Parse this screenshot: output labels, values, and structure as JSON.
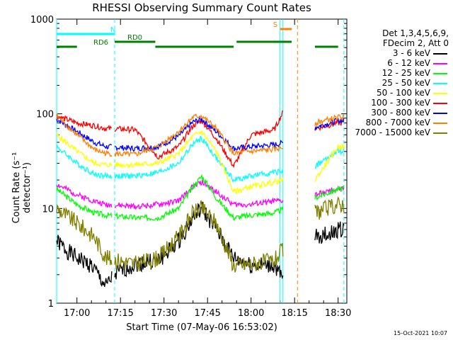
{
  "chart_data": {
    "type": "line",
    "title": "RHESSI Observing Summary Count Rates",
    "xlabel": "Start Time (07-May-06 16:53:02)",
    "ylabel": "Count Rate (s⁻¹ detector⁻¹)",
    "ylim": [
      1,
      1000
    ],
    "yscale": "log",
    "xlim": [
      "16:53",
      "18:33"
    ],
    "x_ticks": [
      "17:00",
      "17:15",
      "17:30",
      "17:45",
      "18:00",
      "18:15",
      "18:30"
    ],
    "y_ticks": [
      "1",
      "10",
      "100",
      "1000"
    ],
    "grid": false,
    "legend_header": [
      "Det 1,3,4,5,6,9,",
      "FDecim 2, Att 0"
    ],
    "legend_position": "right",
    "series": [
      {
        "name": "3 - 6 keV",
        "color": "#000000",
        "x": [
          "16:53",
          "16:57",
          "17:00",
          "17:05",
          "17:10",
          "17:13",
          "17:20",
          "17:28",
          "17:35",
          "17:40",
          "17:43",
          "17:48",
          "17:54",
          "18:00",
          "18:08",
          "18:12",
          "18:22",
          "18:28",
          "18:30"
        ],
        "y": [
          4.5,
          3.5,
          3.0,
          2.5,
          1.5,
          2.0,
          2.6,
          2.8,
          4.5,
          8,
          10,
          6,
          3,
          2.5,
          2.5,
          1.5,
          5,
          5.5,
          6
        ]
      },
      {
        "name": "6 - 12 keV",
        "color": "#ff00ff",
        "x": [
          "16:53",
          "17:00",
          "17:06",
          "17:10",
          "17:20",
          "17:28",
          "17:35",
          "17:40",
          "17:43",
          "17:48",
          "17:54",
          "18:00",
          "18:08",
          "18:12",
          "18:22",
          "18:30"
        ],
        "y": [
          18,
          14,
          12,
          11,
          10.5,
          11,
          12,
          17,
          19,
          15,
          11,
          11,
          12,
          12,
          14,
          16
        ]
      },
      {
        "name": "12 - 25 keV",
        "color": "#00ff00",
        "x": [
          "16:53",
          "17:00",
          "17:06",
          "17:10",
          "17:20",
          "17:28",
          "17:35",
          "17:40",
          "17:43",
          "17:48",
          "17:54",
          "18:00",
          "18:08",
          "18:12",
          "18:22",
          "18:30"
        ],
        "y": [
          16,
          11,
          9,
          8.5,
          8,
          8,
          10,
          17,
          22,
          13,
          8,
          8.5,
          9,
          10,
          13,
          16
        ]
      },
      {
        "name": "25 - 50 keV",
        "color": "#00ffff",
        "x": [
          "16:53",
          "17:00",
          "17:06",
          "17:10",
          "17:20",
          "17:28",
          "17:35",
          "17:40",
          "17:43",
          "17:48",
          "17:54",
          "18:00",
          "18:08",
          "18:12",
          "18:22",
          "18:30"
        ],
        "y": [
          45,
          30,
          23,
          22,
          22,
          24,
          30,
          48,
          55,
          34,
          20,
          22,
          24,
          25,
          28,
          40
        ]
      },
      {
        "name": "50 - 100 keV",
        "color": "#ffff00",
        "x": [
          "16:53",
          "17:00",
          "17:06",
          "17:10",
          "17:20",
          "17:28",
          "17:35",
          "17:40",
          "17:43",
          "17:48",
          "17:54",
          "18:00",
          "18:08",
          "18:12",
          "18:22",
          "18:30"
        ],
        "y": [
          60,
          40,
          30,
          29,
          29,
          30,
          38,
          58,
          65,
          40,
          15,
          17,
          19,
          20,
          20,
          45
        ]
      },
      {
        "name": "100 - 300 keV",
        "color": "#ff0000",
        "x": [
          "16:53",
          "17:00",
          "17:06",
          "17:10",
          "17:20",
          "17:28",
          "17:35",
          "17:40",
          "17:43",
          "17:48",
          "17:54",
          "18:00",
          "18:08",
          "18:12",
          "18:22",
          "18:30"
        ],
        "y": [
          95,
          80,
          75,
          70,
          68,
          35,
          45,
          75,
          85,
          55,
          28,
          60,
          68,
          120,
          70,
          80
        ]
      },
      {
        "name": "300 - 800 keV",
        "color": "#0000ff",
        "x": [
          "16:53",
          "17:00",
          "17:06",
          "17:10",
          "17:20",
          "17:28",
          "17:35",
          "17:40",
          "17:43",
          "17:48",
          "17:54",
          "18:00",
          "18:08",
          "18:12",
          "18:22",
          "18:30"
        ],
        "y": [
          88,
          65,
          50,
          45,
          43,
          45,
          58,
          82,
          88,
          65,
          43,
          45,
          47,
          50,
          72,
          85
        ]
      },
      {
        "name": "800 - 7000 keV",
        "color": "#ff8000",
        "x": [
          "16:53",
          "17:00",
          "17:06",
          "17:10",
          "17:20",
          "17:28",
          "17:35",
          "17:40",
          "17:43",
          "17:48",
          "17:54",
          "18:00",
          "18:08",
          "18:12",
          "18:22",
          "18:30"
        ],
        "y": [
          95,
          60,
          42,
          38,
          37,
          45,
          65,
          92,
          95,
          70,
          38,
          40,
          42,
          45,
          80,
          92
        ]
      },
      {
        "name": "7000 - 15000 keV",
        "color": "#808000",
        "x": [
          "16:53",
          "17:00",
          "17:06",
          "17:10",
          "17:20",
          "17:28",
          "17:35",
          "17:40",
          "17:43",
          "17:48",
          "17:54",
          "18:00",
          "18:08",
          "18:12",
          "18:22",
          "18:30"
        ],
        "y": [
          10,
          7,
          5,
          3,
          2.6,
          3,
          5,
          9,
          10,
          7,
          2.5,
          2.6,
          2.8,
          4,
          9,
          11
        ]
      }
    ],
    "flags": [
      {
        "label": "N",
        "color": "#00ffff",
        "from": "16:53",
        "to": "17:13"
      },
      {
        "label": "RD0",
        "color": "#008000",
        "segments": [
          [
            "17:13",
            "17:27"
          ],
          [
            "17:55",
            "18:14"
          ]
        ]
      },
      {
        "label": "RD6",
        "color": "#008000",
        "segments": [
          [
            "16:53",
            "17:00"
          ],
          [
            "17:27",
            "17:54"
          ],
          [
            "18:22",
            "18:30"
          ]
        ]
      },
      {
        "label": "S",
        "color": "#ff8000",
        "from": "18:10",
        "to": "18:14"
      }
    ]
  },
  "footer": {
    "timestamp": "15-Oct-2021 10:07"
  }
}
